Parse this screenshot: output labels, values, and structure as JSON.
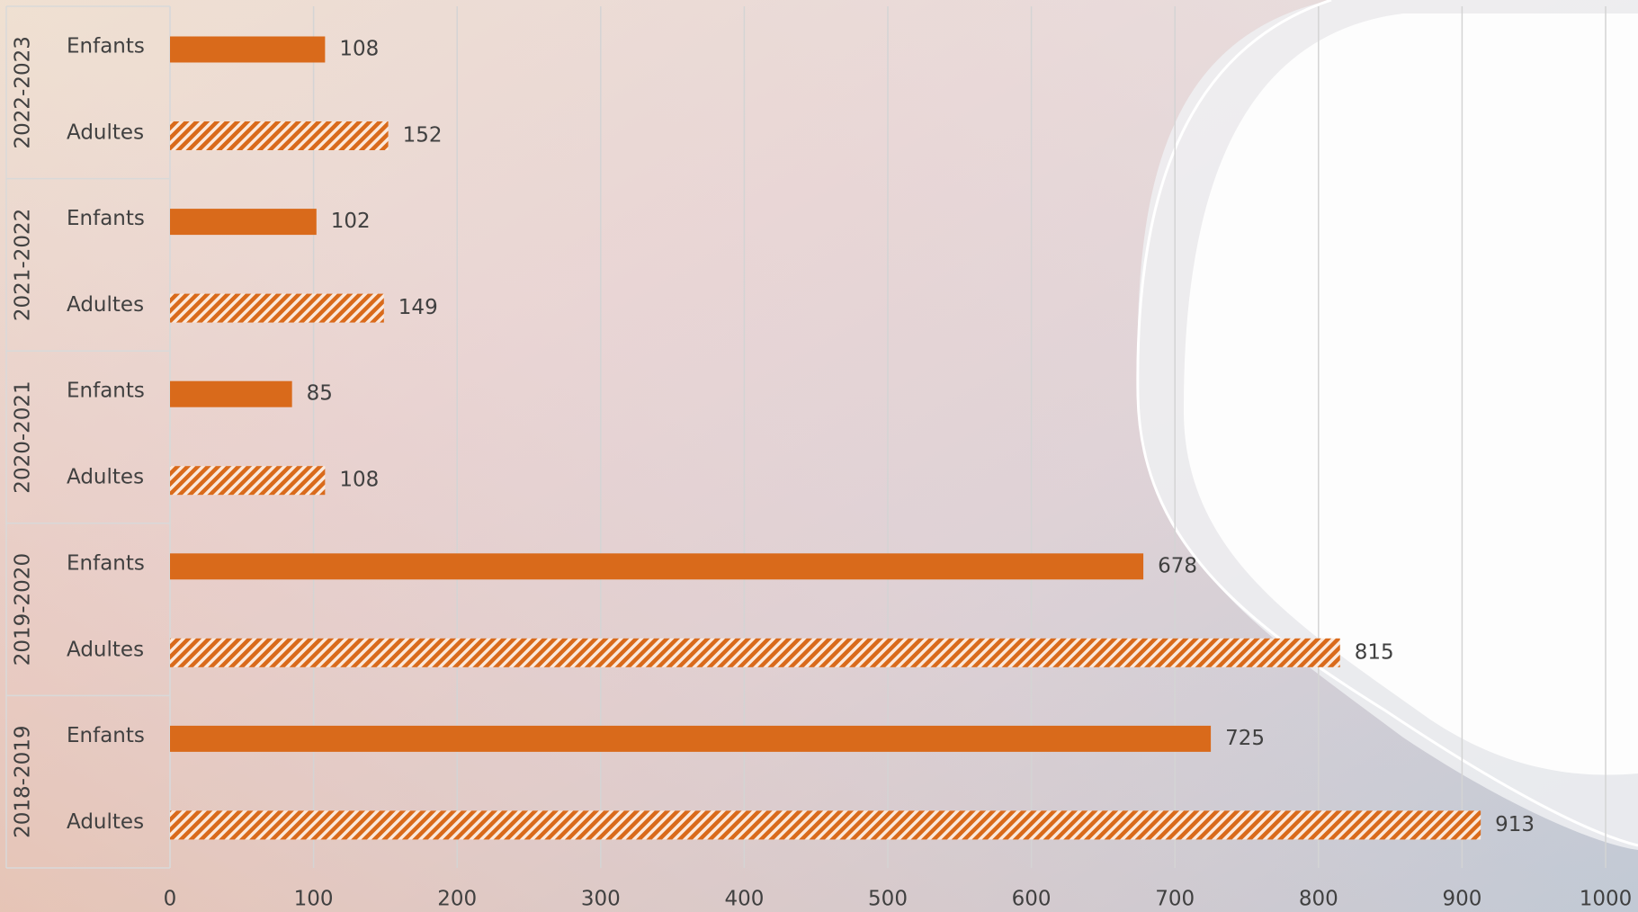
{
  "chart_data": {
    "type": "bar",
    "groups": [
      "2022-2023",
      "2021-2022",
      "2020-2021",
      "2019-2020",
      "2018-2019"
    ],
    "series": [
      {
        "name": "Enfants",
        "color": "#d96a1b",
        "fill": "solid",
        "values": [
          108,
          102,
          85,
          678,
          725
        ]
      },
      {
        "name": "Adultes",
        "color": "#d96a1b",
        "fill": "hatch",
        "values": [
          152,
          149,
          108,
          815,
          913
        ]
      }
    ],
    "xlim": [
      0,
      1000
    ],
    "xticks": [
      0,
      100,
      200,
      300,
      400,
      500,
      600,
      700,
      800,
      900,
      1000
    ],
    "grid": true
  }
}
